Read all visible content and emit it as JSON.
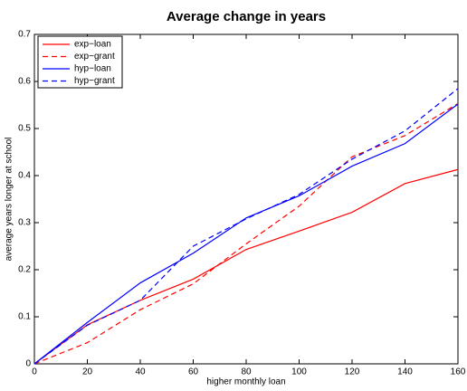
{
  "chart_data": {
    "type": "line",
    "title": "Average change in years",
    "xlabel": "higher monthly loan",
    "ylabel": "average years longer at school",
    "x": [
      0,
      20,
      40,
      60,
      80,
      100,
      120,
      140,
      160
    ],
    "series": [
      {
        "name": "exp−loan",
        "color": "#ff0000",
        "linestyle": "solid",
        "values": [
          0,
          0.083,
          0.135,
          0.18,
          0.243,
          0.282,
          0.322,
          0.383,
          0.413
        ]
      },
      {
        "name": "exp−grant",
        "color": "#ff0000",
        "linestyle": "dashed",
        "values": [
          0,
          0.045,
          0.115,
          0.17,
          0.255,
          0.335,
          0.44,
          0.485,
          0.553
        ]
      },
      {
        "name": "hyp−loan",
        "color": "#0000ff",
        "linestyle": "solid",
        "values": [
          0,
          0.088,
          0.172,
          0.235,
          0.31,
          0.357,
          0.42,
          0.468,
          0.552
        ]
      },
      {
        "name": "hyp−grant",
        "color": "#0000ff",
        "linestyle": "dashed",
        "values": [
          0,
          0.082,
          0.135,
          0.25,
          0.308,
          0.36,
          0.435,
          0.495,
          0.585
        ]
      }
    ],
    "xlim": [
      0,
      160
    ],
    "xticks": [
      0,
      20,
      40,
      60,
      80,
      100,
      120,
      140,
      160
    ],
    "ylim": [
      0,
      0.7
    ],
    "yticks": [
      0,
      0.1,
      0.2,
      0.3,
      0.4,
      0.5,
      0.6,
      0.7
    ],
    "legend": "upper left",
    "grid": false
  }
}
